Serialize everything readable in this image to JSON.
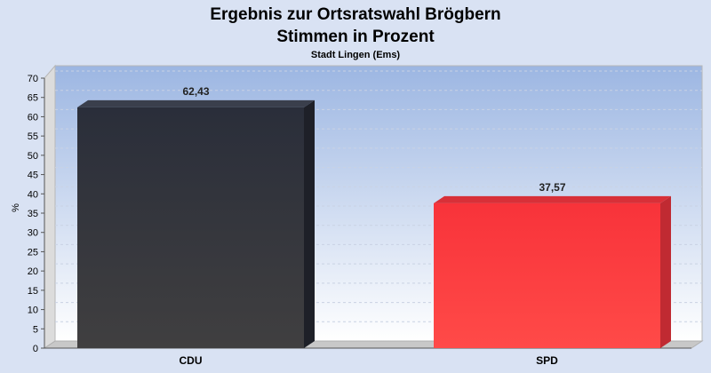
{
  "chart_data": {
    "type": "bar",
    "title": "Ergebnis zur Ortsratswahl Brögbern",
    "subtitle": "Stimmen in Prozent",
    "caption": "Stadt Lingen (Ems)",
    "ylabel": "%",
    "xlabel": "",
    "ylim": [
      0,
      70
    ],
    "yticks": [
      0,
      5,
      10,
      15,
      20,
      25,
      30,
      35,
      40,
      45,
      50,
      55,
      60,
      65,
      70
    ],
    "grid": true,
    "categories": [
      "CDU",
      "SPD"
    ],
    "values": [
      62.43,
      37.57
    ],
    "value_labels": [
      "62,43",
      "37,57"
    ],
    "colors": [
      "#2a2d36",
      "#ff3b3b"
    ]
  }
}
